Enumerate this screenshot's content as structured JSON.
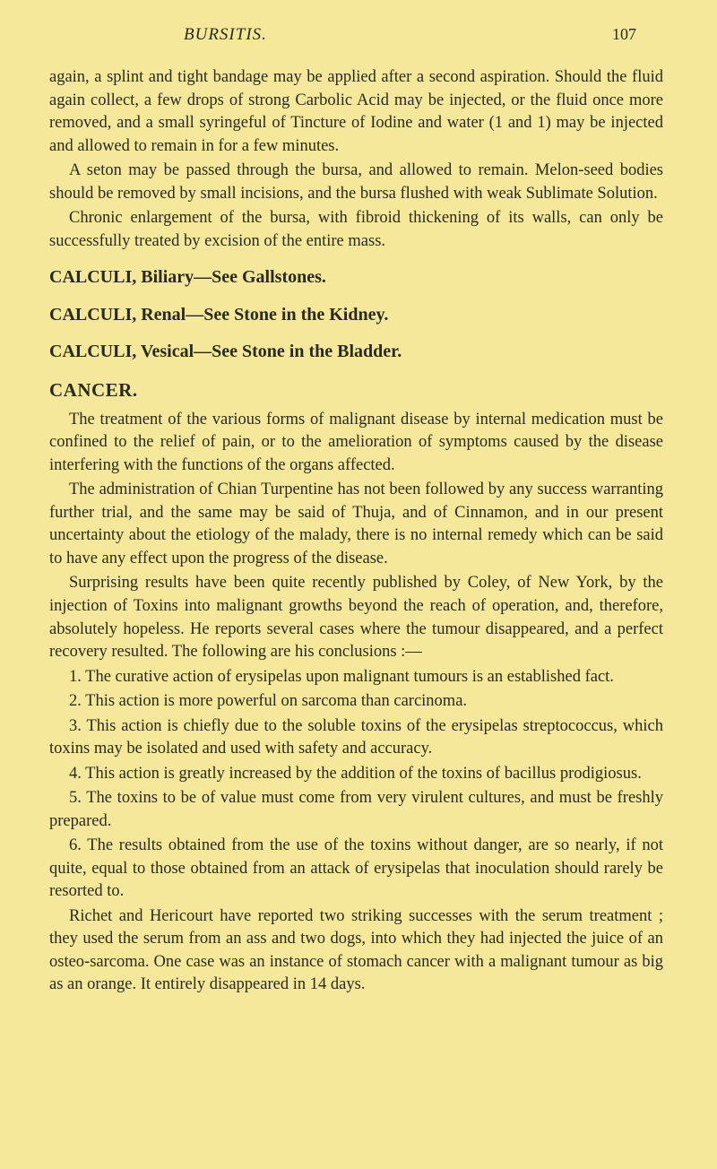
{
  "header": {
    "running_title": "BURSITIS.",
    "page_number": "107"
  },
  "paragraphs": {
    "p1": "again, a splint and tight bandage may be applied after a second aspiration. Should the fluid again collect, a few drops of strong Carbolic Acid may be injected, or the fluid once more removed, and a small syringeful of Tincture of Iodine and water (1 and 1) may be injected and allowed to remain in for a few minutes.",
    "p2": "A seton may be passed through the bursa, and allowed to remain. Melon-seed bodies should be removed by small incisions, and the bursa flushed with weak Sublimate Solution.",
    "p3": "Chronic enlargement of the bursa, with fibroid thickening of its walls, can only be successfully treated by excision of the entire mass.",
    "h1": "CALCULI, Biliary—See Gallstones.",
    "h2": "CALCULI, Renal—See Stone in the Kidney.",
    "h3": "CALCULI, Vesical—See Stone in the Bladder.",
    "h4": "CANCER.",
    "p4": "The treatment of the various forms of malignant disease by internal medication must be confined to the relief of pain, or to the amelioration of symptoms caused by the disease interfering with the functions of the organs affected.",
    "p5": "The administration of Chian Turpentine has not been followed by any success warranting further trial, and the same may be said of Thuja, and of Cinnamon, and in our present uncertainty about the etiology of the malady, there is no internal remedy which can be said to have any effect upon the progress of the disease.",
    "p6": "Surprising results have been quite recently published by Coley, of New York, by the injection of Toxins into malignant growths beyond the reach of operation, and, therefore, absolutely hopeless. He reports several cases where the tumour disappeared, and a perfect recovery resulted. The following are his conclusions :—",
    "p7": "1. The curative action of erysipelas upon malignant tumours is an established fact.",
    "p8": "2. This action is more powerful on sarcoma than carcinoma.",
    "p9": "3. This action is chiefly due to the soluble toxins of the erysipelas streptococcus, which toxins may be isolated and used with safety and accuracy.",
    "p10": "4. This action is greatly increased by the addition of the toxins of bacillus prodigiosus.",
    "p11": "5. The toxins to be of value must come from very virulent cultures, and must be freshly prepared.",
    "p12": "6. The results obtained from the use of the toxins without danger, are so nearly, if not quite, equal to those obtained from an attack of erysipelas that inoculation should rarely be resorted to.",
    "p13": "Richet and Hericourt have reported two striking successes with the serum treatment ; they used the serum from an ass and two dogs, into which they had injected the juice of an osteo-sarcoma. One case was an instance of stomach cancer with a malignant tumour as big as an orange. It entirely disappeared in 14 days."
  },
  "colors": {
    "background": "#f5e89a",
    "text": "#2a2a1a"
  }
}
